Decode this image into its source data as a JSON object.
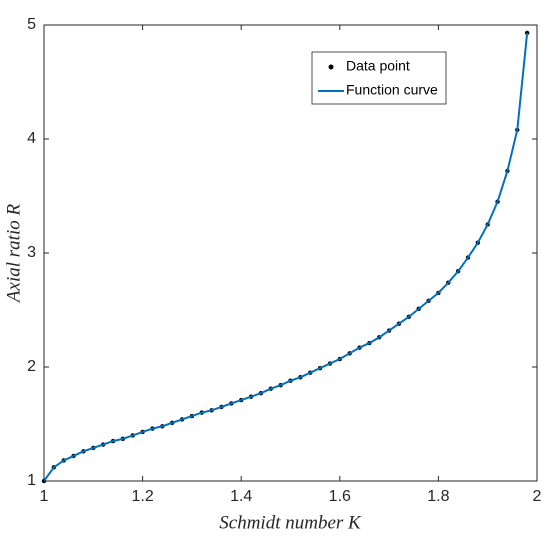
{
  "chart_data": {
    "type": "scatter-line",
    "xlabel": "Schmidt number K",
    "ylabel": "Axial ratio R",
    "x": [
      1.0,
      1.02,
      1.04,
      1.06,
      1.08,
      1.1,
      1.12,
      1.14,
      1.16,
      1.18,
      1.2,
      1.22,
      1.24,
      1.26,
      1.28,
      1.3,
      1.32,
      1.34,
      1.36,
      1.38,
      1.4,
      1.42,
      1.44,
      1.46,
      1.48,
      1.5,
      1.52,
      1.54,
      1.56,
      1.58,
      1.6,
      1.62,
      1.64,
      1.66,
      1.68,
      1.7,
      1.72,
      1.74,
      1.76,
      1.78,
      1.8,
      1.82,
      1.84,
      1.86,
      1.88,
      1.9,
      1.92,
      1.94,
      1.96,
      1.98
    ],
    "series": [
      {
        "name": "Data point",
        "color": "#000000",
        "style": "points",
        "values": [
          1.0,
          1.12,
          1.18,
          1.22,
          1.26,
          1.29,
          1.32,
          1.35,
          1.37,
          1.4,
          1.43,
          1.46,
          1.48,
          1.51,
          1.54,
          1.57,
          1.6,
          1.62,
          1.65,
          1.68,
          1.71,
          1.74,
          1.77,
          1.81,
          1.84,
          1.88,
          1.91,
          1.95,
          1.99,
          2.03,
          2.07,
          2.12,
          2.17,
          2.21,
          2.26,
          2.32,
          2.38,
          2.44,
          2.51,
          2.58,
          2.65,
          2.74,
          2.84,
          2.96,
          3.09,
          3.25,
          3.45,
          3.72,
          4.08,
          4.93
        ]
      },
      {
        "name": "Function curve",
        "color": "#0072bd",
        "style": "line",
        "values": [
          1.0,
          1.12,
          1.18,
          1.22,
          1.26,
          1.29,
          1.32,
          1.35,
          1.37,
          1.4,
          1.43,
          1.46,
          1.48,
          1.51,
          1.54,
          1.57,
          1.6,
          1.62,
          1.65,
          1.68,
          1.71,
          1.74,
          1.77,
          1.81,
          1.84,
          1.88,
          1.91,
          1.95,
          1.99,
          2.03,
          2.07,
          2.12,
          2.17,
          2.21,
          2.26,
          2.32,
          2.38,
          2.44,
          2.51,
          2.58,
          2.65,
          2.74,
          2.84,
          2.96,
          3.09,
          3.25,
          3.45,
          3.72,
          4.08,
          4.93
        ]
      }
    ],
    "xlim": [
      1,
      2
    ],
    "xticks": [
      1,
      1.2,
      1.4,
      1.6,
      1.8,
      2
    ],
    "ylim": [
      1,
      5
    ],
    "yticks": [
      1,
      2,
      3,
      4,
      5
    ],
    "legend": "top-right"
  }
}
